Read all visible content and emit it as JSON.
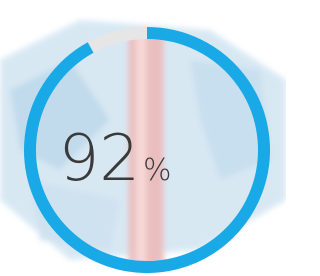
{
  "chart_data": {
    "type": "gauge",
    "value": 92,
    "unit": "%",
    "ylim": [
      0,
      100
    ],
    "color": "#18a9e6",
    "track_color": "#e6e6e6"
  }
}
